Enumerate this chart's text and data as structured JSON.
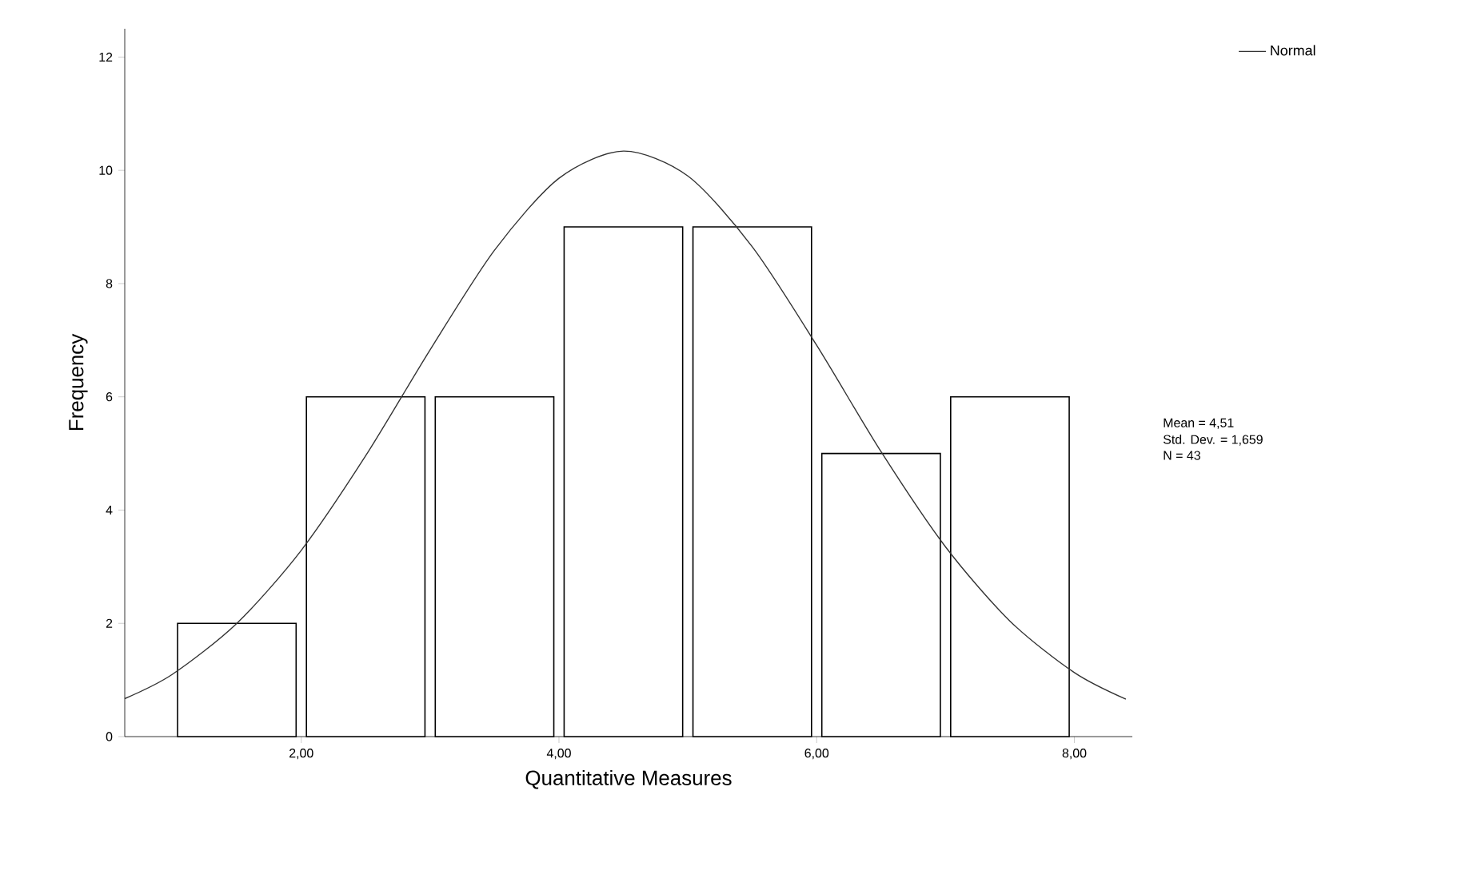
{
  "chart_data": {
    "type": "histogram",
    "xlabel": "Quantitative Measures",
    "ylabel": "Frequency",
    "bins": [
      1,
      2,
      3,
      4,
      5,
      6,
      7,
      8
    ],
    "values": [
      2,
      6,
      6,
      9,
      9,
      5,
      6
    ],
    "color": "#ffffff",
    "series": [
      {
        "type": "line",
        "name": "Normal",
        "color": "#333333",
        "x": [
          0.63,
          1,
          1.5,
          2,
          2.5,
          3,
          3.5,
          4,
          4.5,
          5,
          5.5,
          6,
          6.5,
          7,
          7.5,
          8,
          8.4
        ],
        "values": [
          0.67,
          1.1,
          2.0,
          3.29,
          4.96,
          6.83,
          8.59,
          9.86,
          10.34,
          9.9,
          8.65,
          6.91,
          5.03,
          3.35,
          2.04,
          1.13,
          0.66
        ]
      }
    ],
    "xlim": [
      0.63,
      8.45
    ],
    "ylim": [
      0,
      12.5
    ],
    "xticks": [
      {
        "value": 2,
        "label": "2,00"
      },
      {
        "value": 4,
        "label": "4,00"
      },
      {
        "value": 6,
        "label": "6,00"
      },
      {
        "value": 8,
        "label": "8,00"
      }
    ],
    "yticks": [
      0,
      2,
      4,
      6,
      8,
      10,
      12
    ],
    "legend": "top right",
    "annotations": [
      "Mean = 4,51",
      "Std. Dev. = 1,659",
      "N = 43"
    ]
  }
}
